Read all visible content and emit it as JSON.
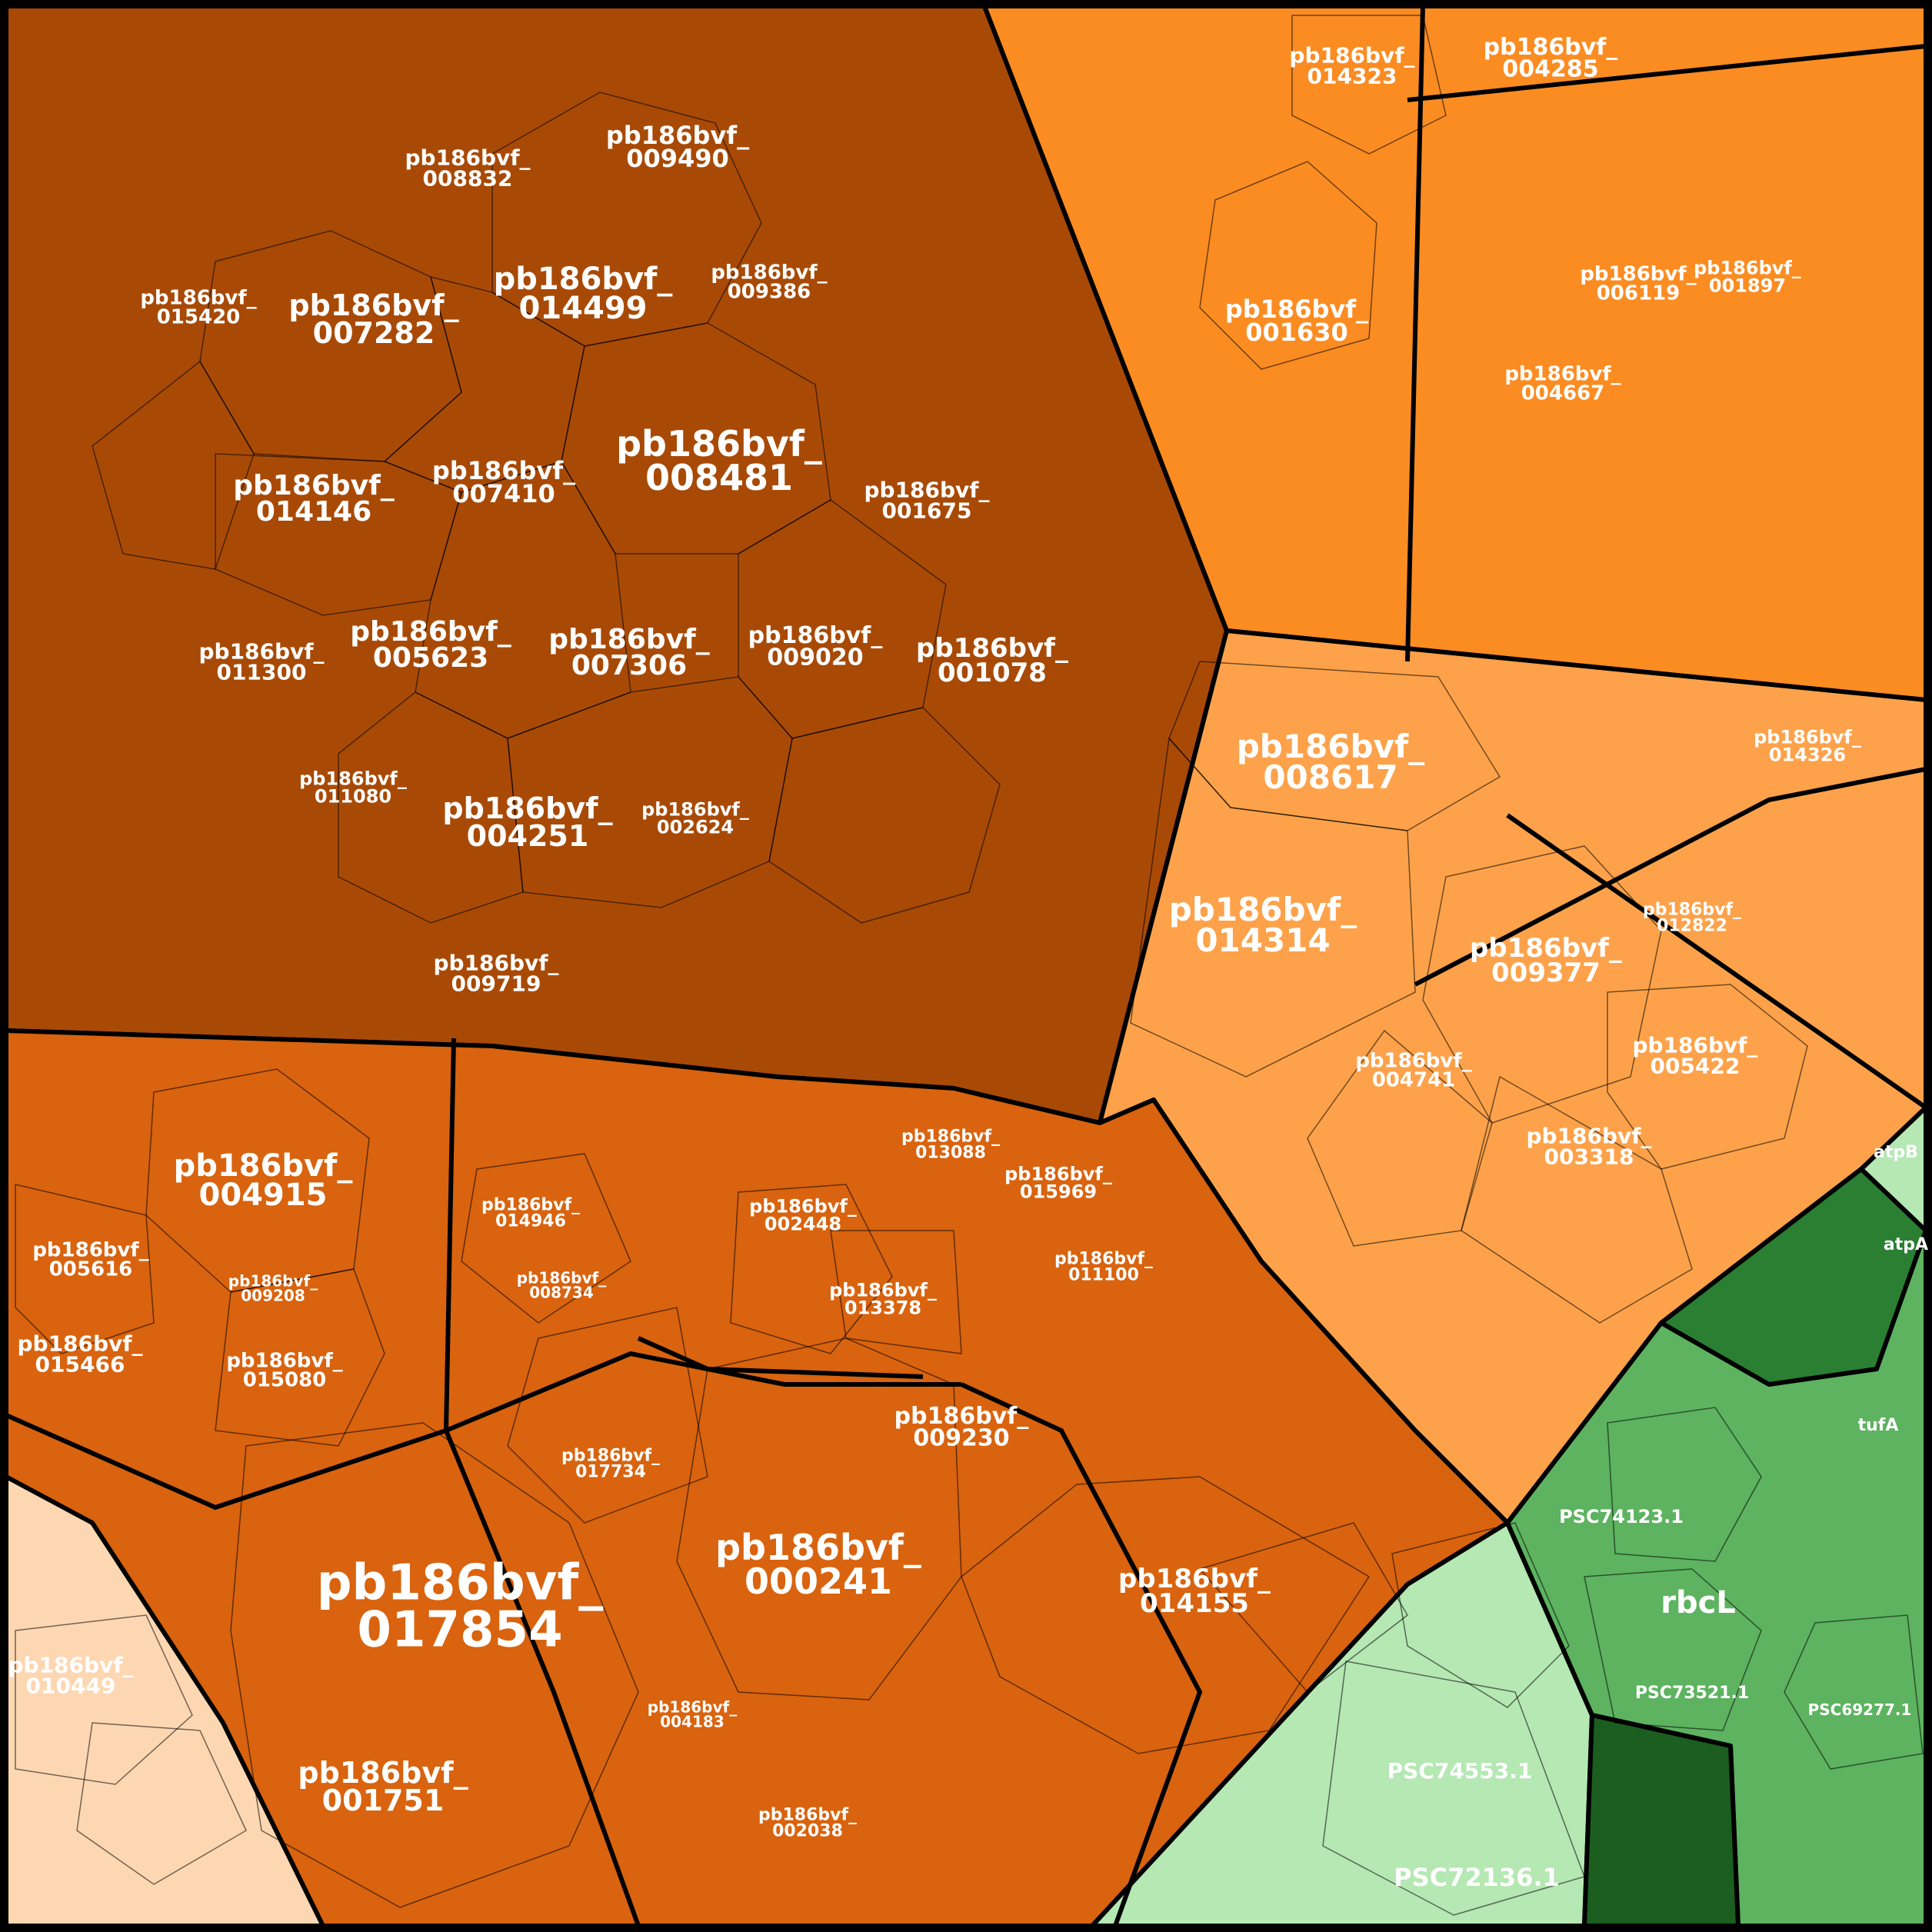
{
  "colors": {
    "brown_dark": "#a84a06",
    "orange_mid": "#d9630e",
    "orange_light": "#fb8c22",
    "orange_pale": "#fda24a",
    "peach": "#fdd7b2",
    "green_pale": "#b5e8b3",
    "green_mid": "#5db360",
    "green_dark": "#2a7f33",
    "green_darkest": "#1b5e20",
    "border": "#000000"
  },
  "regions": [
    {
      "id": "brown-region",
      "color": "brown_dark"
    },
    {
      "id": "orange-top-right-region",
      "color": "orange_light"
    },
    {
      "id": "orange-pale-region",
      "color": "orange_pale"
    },
    {
      "id": "orange-bottom-region",
      "color": "orange_mid"
    },
    {
      "id": "peach-region",
      "color": "peach"
    },
    {
      "id": "green-pale-region",
      "color": "green_pale"
    },
    {
      "id": "green-mid-region",
      "color": "green_mid"
    },
    {
      "id": "green-dark-region",
      "color": "green_dark"
    },
    {
      "id": "green-darkest-region",
      "color": "green_darkest"
    },
    {
      "id": "green-top-right-region",
      "color": "green_pale"
    }
  ],
  "labels": {
    "l017854": "pb186bvf_\n017854",
    "l000241": "pb186bvf_\n000241",
    "l008481": "pb186bvf_\n008481",
    "l014499": "pb186bvf_\n014499",
    "l007282": "pb186bvf_\n007282",
    "l014146": "pb186bvf_\n014146",
    "l007410": "pb186bvf_\n007410",
    "l001675": "pb186bvf_\n001675",
    "l005623": "pb186bvf_\n005623",
    "l007306": "pb186bvf_\n007306",
    "l009020": "pb186bvf_\n009020",
    "l001078": "pb186bvf_\n001078",
    "l011300": "pb186bvf_\n011300",
    "l004251": "pb186bvf_\n004251",
    "l009490": "pb186bvf_\n009490",
    "l008832": "pb186bvf_\n008832",
    "l009386": "pb186bvf_\n009386",
    "l015420": "pb186bvf_\n015420",
    "l011080": "pb186bvf_\n011080",
    "l002624": "pb186bvf_\n002624",
    "l009719": "pb186bvf_\n009719",
    "l008617": "pb186bvf_\n008617",
    "l014314": "pb186bvf_\n014314",
    "l009377": "pb186bvf_\n009377",
    "l005422": "pb186bvf_\n005422",
    "l004741": "pb186bvf_\n004741",
    "l003318": "pb186bvf_\n003318",
    "l014326": "pb186bvf_\n014326",
    "l012822": "pb186bvf_\n012822",
    "l014323": "pb186bvf_\n014323",
    "l004285": "pb186bvf_\n004285",
    "l001630": "pb186bvf_\n001630",
    "l006119": "pb186bvf_\n006119",
    "l004667": "pb186bvf_\n004667",
    "l001897": "pb186bvf_\n001897",
    "l004915": "pb186bvf_\n004915",
    "l005616": "pb186bvf_\n005616",
    "l015466": "pb186bvf_\n015466",
    "l015080": "pb186bvf_\n015080",
    "l014946": "pb186bvf_\n014946",
    "l002448": "pb186bvf_\n002448",
    "l013378": "pb186bvf_\n013378",
    "l013088": "pb186bvf_\n013088",
    "l015969": "pb186bvf_\n015969",
    "l011100": "pb186bvf_\n011100",
    "l009230": "pb186bvf_\n009230",
    "l014155": "pb186bvf_\n014155",
    "l001751": "pb186bvf_\n001751",
    "l010449": "pb186bvf_\n010449",
    "l017734": "pb186bvf_\n017734",
    "l002038": "pb186bvf_\n002038",
    "l004183": "pb186bvf_\n004183",
    "l008734": "pb186bvf_\n008734",
    "l009208": "pb186bvf_\n009208",
    "lrbcL": "rbcL",
    "lPSC74553": "PSC74553.1",
    "lPSC72136": "PSC72136.1",
    "lPSC74123": "PSC74123.1",
    "lPSC73521": "PSC73521.1",
    "lPSC69277": "PSC69277.1",
    "ltufA": "tufA",
    "latpB": "atpB",
    "latpA": "atpA"
  }
}
